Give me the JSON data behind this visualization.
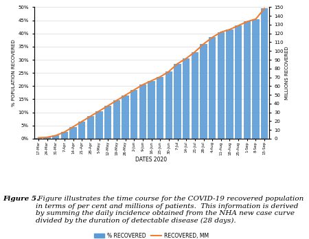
{
  "x_labels": [
    "17-Mar",
    "24-Mar",
    "31-Mar",
    "7-Apr",
    "14-Apr",
    "21-Apr",
    "28-Apr",
    "5-May",
    "12-May",
    "19-May",
    "26-May",
    "2-Jun",
    "9-Jun",
    "16-Jun",
    "23-Jun",
    "30-Jun",
    "7-Jul",
    "14-Jul",
    "21-Jul",
    "28-Jul",
    "4-Aug",
    "11-Aug",
    "18-Aug",
    "25-Aug",
    "1-Sep",
    "8-Sep",
    "15-Sep"
  ],
  "pct_recovered": [
    0.3,
    0.5,
    1.2,
    2.5,
    4.5,
    6.5,
    8.5,
    10.5,
    12.5,
    14.5,
    16.5,
    18.5,
    20.5,
    22.0,
    23.5,
    25.5,
    28.5,
    30.5,
    33.0,
    36.0,
    38.5,
    40.5,
    41.5,
    43.0,
    44.5,
    45.5,
    49.5
  ],
  "mm_recovered": [
    1.0,
    1.5,
    3.5,
    7.5,
    13.5,
    19.5,
    25.5,
    31.5,
    37.5,
    43.5,
    49.5,
    55.5,
    61.5,
    66.0,
    70.5,
    76.5,
    85.5,
    91.5,
    99.0,
    108.0,
    115.5,
    121.5,
    124.5,
    129.0,
    133.5,
    136.5,
    148.5
  ],
  "bar_color": "#5b9bd5",
  "line_color": "#ed7d31",
  "ylabel_left": "% POPULATION RECOVERED",
  "ylabel_right": "MILLIONS RECOVERED",
  "xlabel": "DATES 2020",
  "ylim_left": [
    0,
    50
  ],
  "ylim_right": [
    0,
    150
  ],
  "yticks_left": [
    0,
    5,
    10,
    15,
    20,
    25,
    30,
    35,
    40,
    45,
    50
  ],
  "ytick_labels_left": [
    "0%",
    "5%",
    "10%",
    "15%",
    "20%",
    "25%",
    "30%",
    "35%",
    "40%",
    "45%",
    "50%"
  ],
  "yticks_right": [
    0,
    10,
    20,
    30,
    40,
    50,
    60,
    70,
    80,
    90,
    100,
    110,
    120,
    130,
    140,
    150
  ],
  "legend_bar_label": "% RECOVERED",
  "legend_line_label": "RECOVERED, MM",
  "background_color": "#ffffff",
  "grid_color": "#d9d9d9",
  "caption_bold": "Figure 5.",
  "caption_text": " Figure illustrates the time course for the COVID-19 recovered population in terms of per cent and millions of patients.  This information is derived by summing the daily incidence obtained from the NHA new case curve divided by the duration of detectable disease (28 days).",
  "caption_fontsize": 7.5
}
